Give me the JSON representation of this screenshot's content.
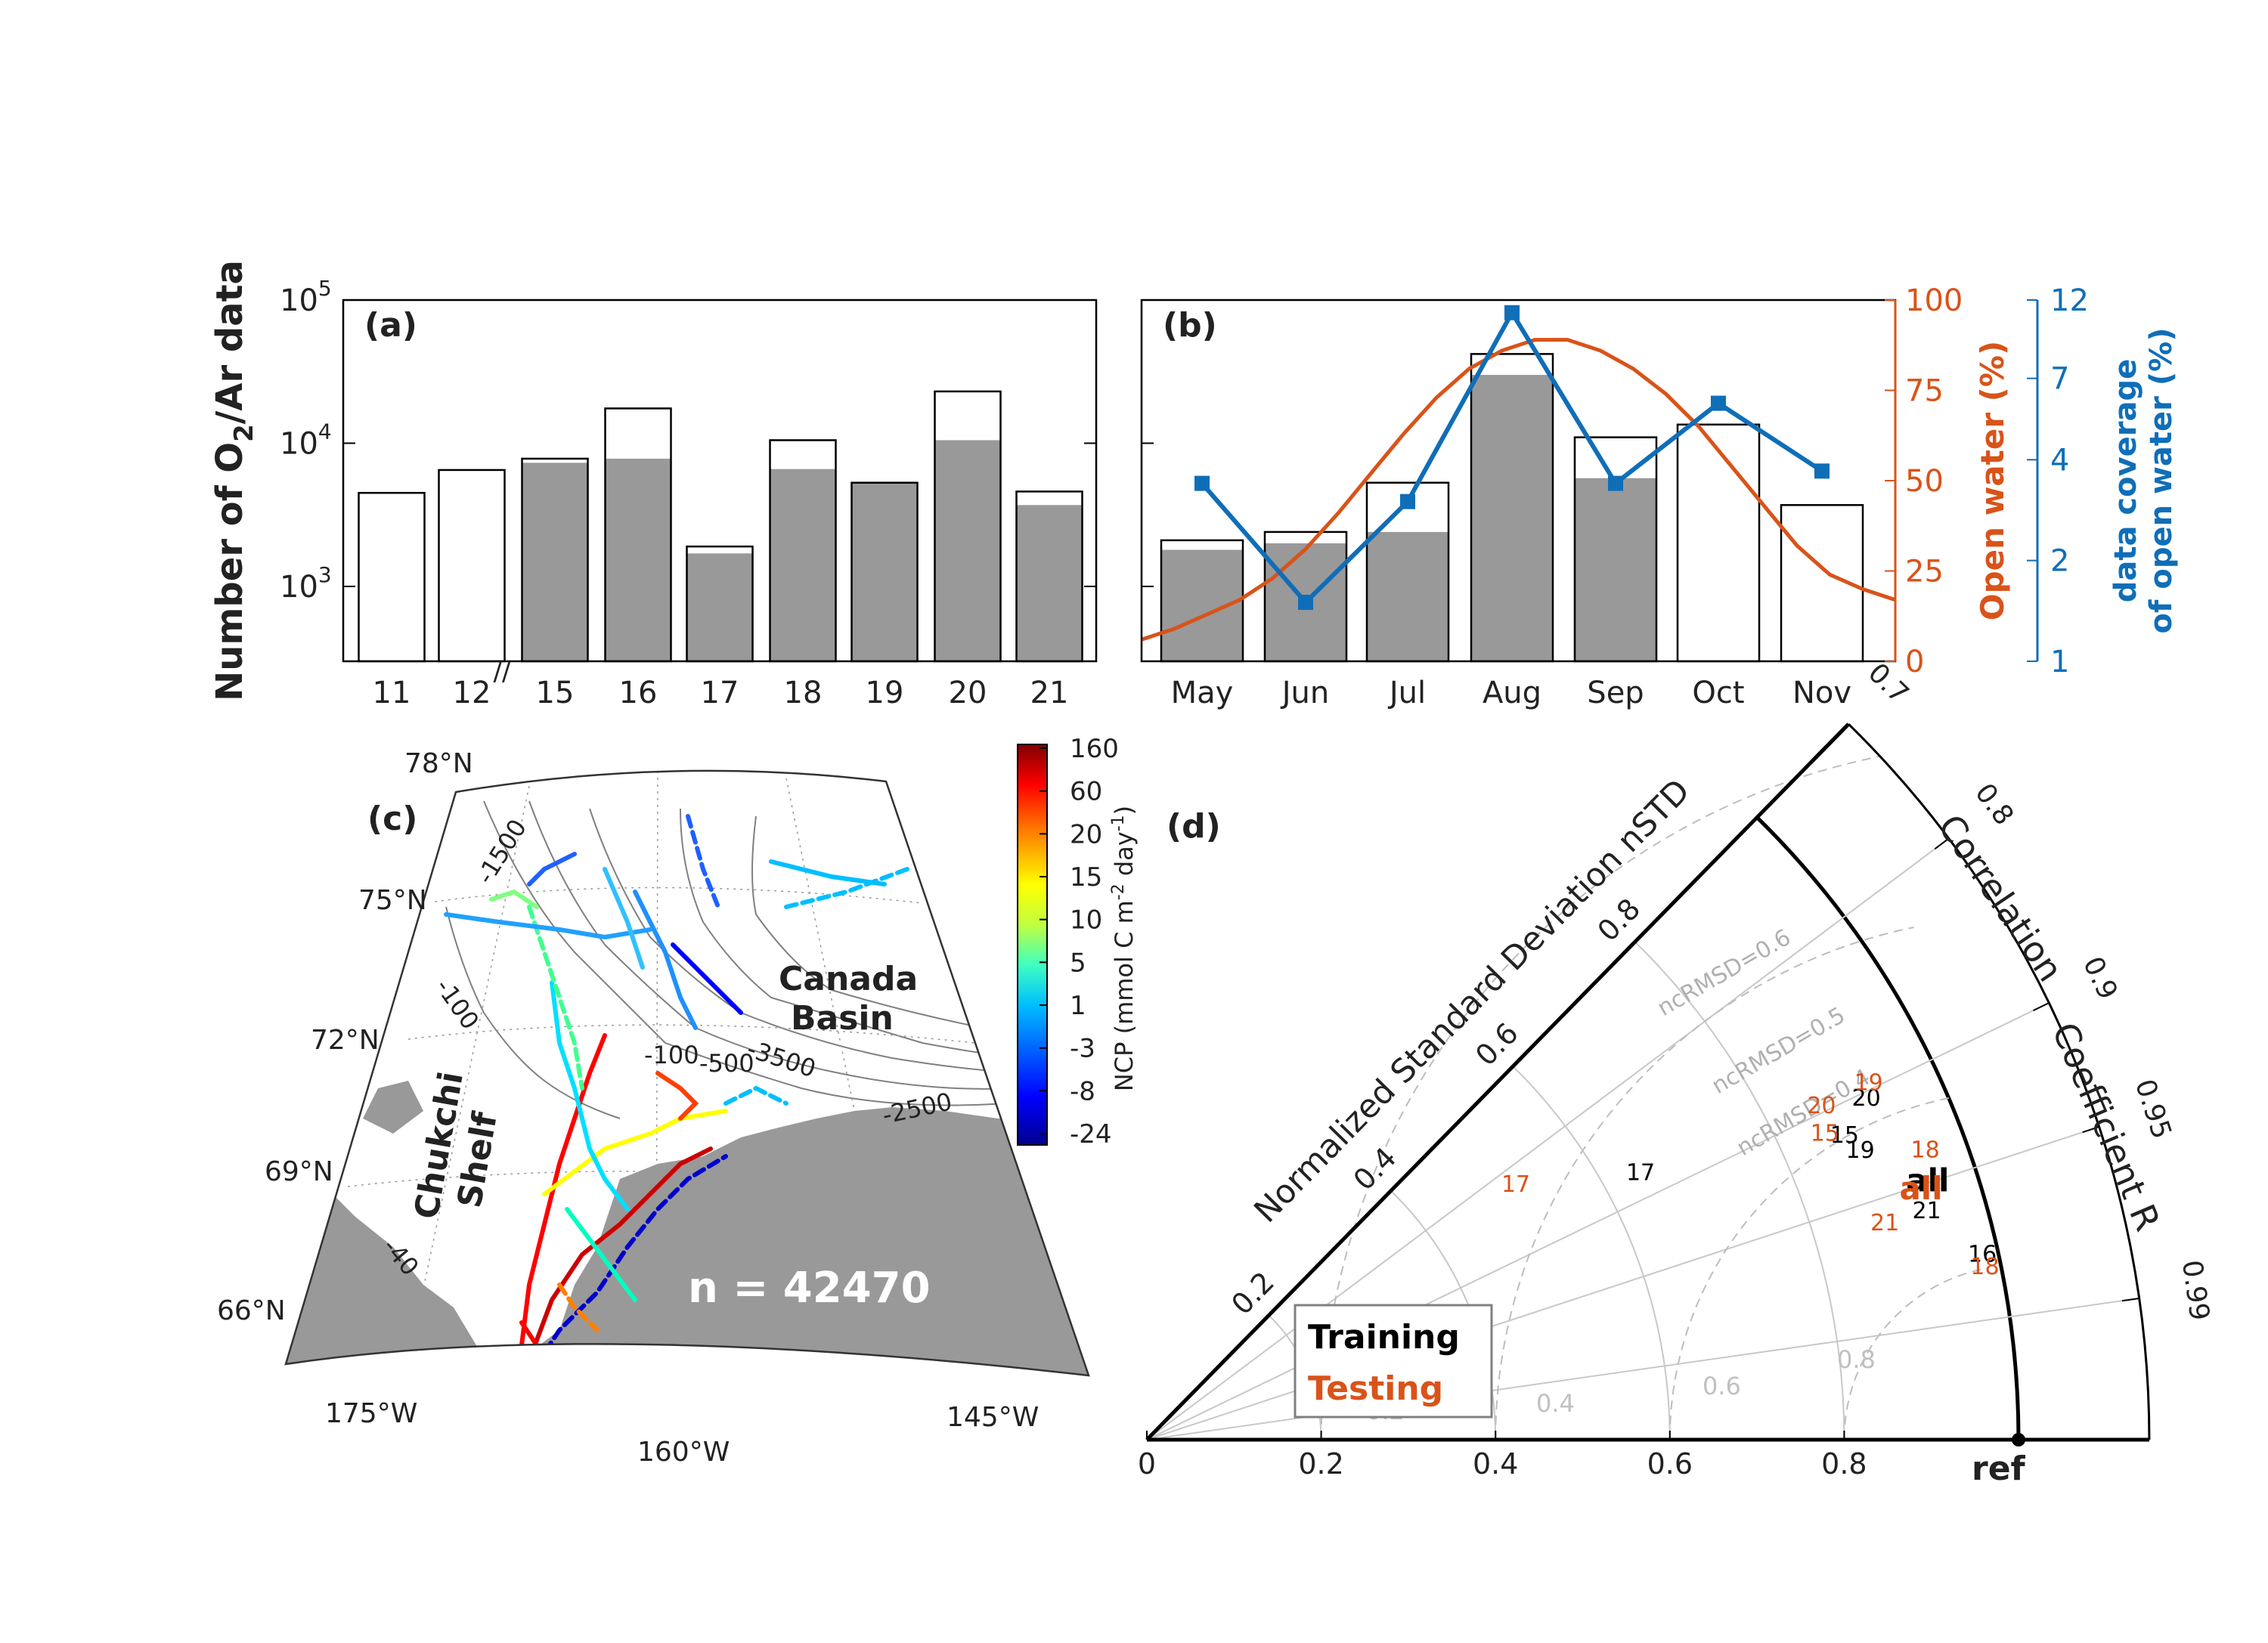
{
  "colors": {
    "orange": "#D95319",
    "blue": "#0F6EB8",
    "gray_bar": "#999999",
    "land": "#999999"
  },
  "chart_data": [
    {
      "panel": "a",
      "type": "bar",
      "panel_label": "(a)",
      "ylabel_parts": [
        "Number of O",
        "2",
        "/Ar data"
      ],
      "yscale": "log",
      "ylim": [
        300,
        100000
      ],
      "y_ticks": [
        {
          "value": 1000,
          "base": "10",
          "exp": "3"
        },
        {
          "value": 10000,
          "base": "10",
          "exp": "4"
        },
        {
          "value": 100000,
          "base": "10",
          "exp": "5"
        }
      ],
      "axis_break_label": "//",
      "categories": [
        "11",
        "12",
        "15",
        "16",
        "17",
        "18",
        "19",
        "20",
        "21"
      ],
      "series": [
        {
          "name": "total",
          "style": "outline",
          "values": [
            4500,
            6500,
            7800,
            17500,
            1900,
            10500,
            5300,
            23000,
            4600
          ]
        },
        {
          "name": "subset",
          "style": "filled",
          "values": [
            null,
            null,
            7300,
            7800,
            1700,
            6600,
            5300,
            10500,
            3700
          ]
        }
      ]
    },
    {
      "panel": "b",
      "type": "bar",
      "panel_label": "(b)",
      "categories": [
        "May",
        "Jun",
        "Jul",
        "Aug",
        "Sep",
        "Oct",
        "Nov"
      ],
      "bar_scale_note": "bars share the log count axis of panel (a)",
      "ylim": [
        300,
        100000
      ],
      "series": [
        {
          "name": "total",
          "style": "outline",
          "values": [
            2100,
            2400,
            5300,
            42000,
            11000,
            13500,
            3700
          ]
        },
        {
          "name": "subset",
          "style": "filled",
          "values": [
            1800,
            2000,
            2400,
            30000,
            5700,
            null,
            null
          ]
        }
      ],
      "open_water": {
        "label": "Open water (%)",
        "ylim": [
          0,
          100
        ],
        "ticks": [
          "0",
          "25",
          "50",
          "75",
          "100"
        ],
        "x": [
          0.0,
          0.3,
          0.6,
          0.9,
          1.2,
          1.5,
          1.8,
          2.1,
          2.4,
          2.7,
          3.0,
          3.3,
          3.6,
          3.9,
          4.2,
          4.5,
          4.8,
          5.1,
          5.4,
          5.7,
          6.0,
          6.3,
          6.6,
          6.9
        ],
        "values": [
          6,
          9,
          13,
          17,
          23,
          31,
          41,
          52,
          63,
          73,
          81,
          86,
          89,
          89,
          86,
          81,
          74,
          65,
          54,
          43,
          32,
          24,
          20,
          17
        ]
      },
      "coverage": {
        "label_line1": "data coverage",
        "label_line2": "of open water (%)",
        "yscale": "log",
        "ylim": [
          1,
          12
        ],
        "ticks": [
          "1",
          "2",
          "4",
          "7",
          "12"
        ],
        "values": [
          3.4,
          1.5,
          3.0,
          11.0,
          3.4,
          5.9,
          3.7
        ]
      }
    },
    {
      "panel": "c",
      "type": "map",
      "panel_label": "(c)",
      "lat_labels": [
        "78°N",
        "75°N",
        "72°N",
        "69°N",
        "66°N"
      ],
      "lon_labels": [
        "175°W",
        "160°W",
        "145°W"
      ],
      "region_labels": {
        "canada": [
          "Canada",
          "Basin"
        ],
        "chukchi": [
          "Chukchi",
          "Shelf"
        ]
      },
      "sample_count": "n = 42470",
      "contour_labels": [
        "-1500",
        "-100",
        "-100",
        "-500",
        "-3500",
        "-2500",
        "-40"
      ],
      "colorbar": {
        "label_parts": [
          "NCP (mmol C m",
          "-2",
          " day",
          "-1",
          ")"
        ],
        "tick_labels": [
          "160",
          "60",
          "20",
          "15",
          "10",
          "5",
          "1",
          "-3",
          "-8",
          "-24"
        ]
      }
    },
    {
      "panel": "d",
      "type": "taylor",
      "panel_label": "(d)",
      "std_axis_label": "Normalized Standard Deviation nSTD",
      "corr_axis_label_1": "Correlation",
      "corr_axis_label_2": "Coefficient R",
      "std_ticks": [
        "0",
        "0.2",
        "0.4",
        "0.6",
        "0.8"
      ],
      "radial_std_ticks": [
        "0.2",
        "0.4",
        "0.6",
        "0.8"
      ],
      "corr_ticks": [
        "0.7",
        "0.8",
        "0.9",
        "0.95",
        "0.99"
      ],
      "ref_label": "ref",
      "rms_labels": [
        "ncRMSD=0.6",
        "ncRMSD=0.5",
        "ncRMSD=0.4"
      ],
      "legend": {
        "training": "Training",
        "testing": "Testing"
      },
      "training_points": [
        {
          "label": "17",
          "r": 0.64,
          "corr": 0.885
        },
        {
          "label": "20",
          "r": 0.91,
          "corr": 0.907
        },
        {
          "label": "15",
          "r": 0.87,
          "corr": 0.92
        },
        {
          "label": "19",
          "r": 0.88,
          "corr": 0.93
        },
        {
          "label": "all",
          "r": 0.94,
          "corr": 0.953
        },
        {
          "label": "21",
          "r": 0.93,
          "corr": 0.962
        },
        {
          "label": "16",
          "r": 0.98,
          "corr": 0.978
        }
      ],
      "testing_points": [
        {
          "label": "17",
          "r": 0.51,
          "corr": 0.83
        },
        {
          "label": "20",
          "r": 0.86,
          "corr": 0.9
        },
        {
          "label": "19",
          "r": 0.92,
          "corr": 0.9
        },
        {
          "label": "15",
          "r": 0.85,
          "corr": 0.915
        },
        {
          "label": "18",
          "r": 0.95,
          "corr": 0.94
        },
        {
          "label": "all",
          "r": 0.93,
          "corr": 0.955
        },
        {
          "label": "21",
          "r": 0.88,
          "corr": 0.962
        },
        {
          "label": "18",
          "r": 0.98,
          "corr": 0.981
        }
      ]
    }
  ]
}
